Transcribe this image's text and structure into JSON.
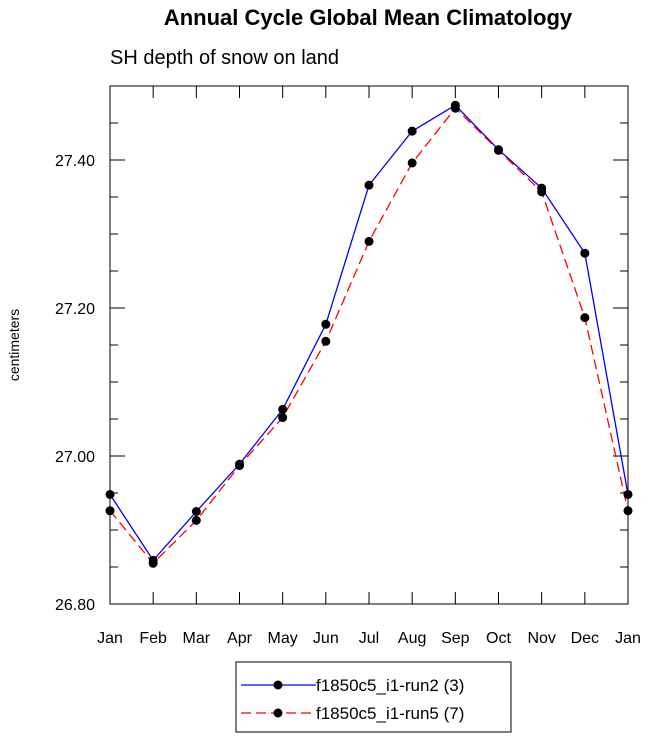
{
  "chart_data": {
    "type": "line",
    "title": "Annual Cycle Global Mean Climatology",
    "subtitle": "SH depth of snow on land",
    "xlabel": "",
    "ylabel": "centimeters",
    "categories": [
      "Jan",
      "Feb",
      "Mar",
      "Apr",
      "May",
      "Jun",
      "Jul",
      "Aug",
      "Sep",
      "Oct",
      "Nov",
      "Dec",
      "Jan"
    ],
    "ylim": [
      26.8,
      27.5
    ],
    "yticks": [
      26.8,
      27.0,
      27.2,
      27.4
    ],
    "ytick_labels": [
      "26.80",
      "27.00",
      "27.20",
      "27.40"
    ],
    "series": [
      {
        "name": "f1850c5_i1-run2 (3)",
        "color": "#0000ff",
        "style": "solid",
        "values": [
          26.948,
          26.859,
          26.925,
          26.989,
          27.063,
          27.178,
          27.366,
          27.439,
          27.474,
          27.414,
          27.362,
          27.274,
          26.948
        ]
      },
      {
        "name": "f1850c5_i1-run5 (7)",
        "color": "#ff0000",
        "style": "dashed",
        "values": [
          26.926,
          26.855,
          26.913,
          26.987,
          27.052,
          27.155,
          27.29,
          27.396,
          27.47,
          27.413,
          27.357,
          27.187,
          26.926
        ]
      }
    ],
    "legend": {
      "position": "bottom-center"
    }
  }
}
